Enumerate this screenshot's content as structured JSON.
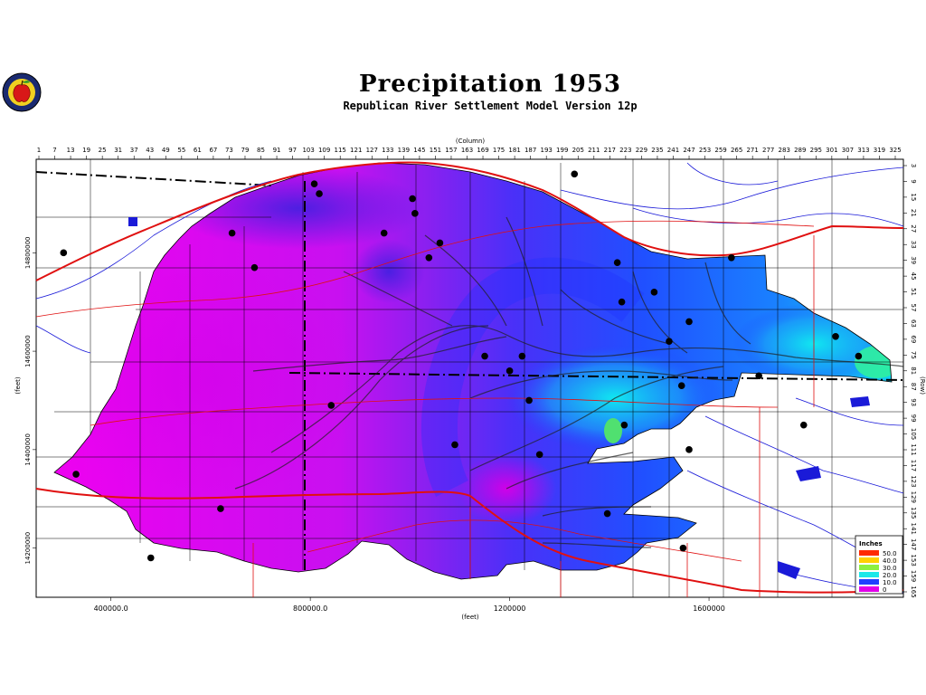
{
  "title": "Precipitation  1953",
  "subtitle": "Republican River Settlement Model Version 12p",
  "logo": {
    "icon": "apple-seal-icon"
  },
  "chart_data": {
    "type": "heatmap",
    "title": "Precipitation  1953",
    "subtitle": "Republican River Settlement Model Version 12p",
    "top_axis_label": "(Column)",
    "right_axis_label": "(Row)",
    "left_axis_label": "(feet)",
    "bottom_axis_label": "(feet)",
    "columns": [
      "1",
      "7",
      "13",
      "19",
      "25",
      "31",
      "37",
      "43",
      "49",
      "55",
      "61",
      "67",
      "73",
      "79",
      "85",
      "91",
      "97",
      "103",
      "109",
      "115",
      "121",
      "127",
      "133",
      "139",
      "145",
      "151",
      "157",
      "163",
      "169",
      "175",
      "181",
      "187",
      "193",
      "199",
      "205",
      "211",
      "217",
      "223",
      "229",
      "235",
      "241",
      "247",
      "253",
      "259",
      "265",
      "271",
      "277",
      "283",
      "289",
      "295",
      "301",
      "307",
      "313",
      "319",
      "325"
    ],
    "rows": [
      "3",
      "9",
      "15",
      "21",
      "27",
      "33",
      "39",
      "45",
      "51",
      "57",
      "63",
      "69",
      "75",
      "81",
      "87",
      "93",
      "99",
      "105",
      "111",
      "117",
      "123",
      "129",
      "135",
      "141",
      "147",
      "153",
      "159",
      "165"
    ],
    "x_ticks": [
      "400000.0",
      "800000.0",
      "1200000",
      "1600000"
    ],
    "y_ticks": [
      "14800000",
      "14600000",
      "14400000",
      "14200000"
    ],
    "legend": {
      "title": "Inches",
      "placement": "bottom-right",
      "entries": [
        {
          "label": "50.0",
          "color": "#ff2a00"
        },
        {
          "label": "40.0",
          "color": "#ffd000"
        },
        {
          "label": "30.0",
          "color": "#8cf040"
        },
        {
          "label": "20.0",
          "color": "#1de8e8"
        },
        {
          "label": "10.0",
          "color": "#2040ff"
        },
        {
          "label": "0",
          "color": "#e000e8"
        }
      ]
    },
    "stations": [
      {
        "x": 305000,
        "y": 14800000
      },
      {
        "x": 330000,
        "y": 14350000
      },
      {
        "x": 480000,
        "y": 14180000
      },
      {
        "x": 620000,
        "y": 14280000
      },
      {
        "x": 643000,
        "y": 14840000
      },
      {
        "x": 688000,
        "y": 14770000
      },
      {
        "x": 808000,
        "y": 14940000
      },
      {
        "x": 818000,
        "y": 14920000
      },
      {
        "x": 842000,
        "y": 14490000
      },
      {
        "x": 948000,
        "y": 14840000
      },
      {
        "x": 1005000,
        "y": 14910000
      },
      {
        "x": 1010000,
        "y": 14880000
      },
      {
        "x": 1038000,
        "y": 14790000
      },
      {
        "x": 1060000,
        "y": 14820000
      },
      {
        "x": 1090000,
        "y": 14410000
      },
      {
        "x": 1150000,
        "y": 14590000
      },
      {
        "x": 1200000,
        "y": 14560000
      },
      {
        "x": 1225000,
        "y": 14590000
      },
      {
        "x": 1239000,
        "y": 14500000
      },
      {
        "x": 1260000,
        "y": 14390000
      },
      {
        "x": 1330000,
        "y": 14960000
      },
      {
        "x": 1396000,
        "y": 14270000
      },
      {
        "x": 1416000,
        "y": 14780000
      },
      {
        "x": 1425000,
        "y": 14700000
      },
      {
        "x": 1430000,
        "y": 14450000
      },
      {
        "x": 1490000,
        "y": 14720000
      },
      {
        "x": 1520000,
        "y": 14620000
      },
      {
        "x": 1545000,
        "y": 14530000
      },
      {
        "x": 1560000,
        "y": 14660000
      },
      {
        "x": 1560000,
        "y": 14400000
      },
      {
        "x": 1645000,
        "y": 14790000
      },
      {
        "x": 1700000,
        "y": 14550000
      },
      {
        "x": 1790000,
        "y": 14450000
      },
      {
        "x": 1854000,
        "y": 14630000
      },
      {
        "x": 1900000,
        "y": 14590000
      },
      {
        "x": 1548000,
        "y": 14200000
      }
    ]
  }
}
